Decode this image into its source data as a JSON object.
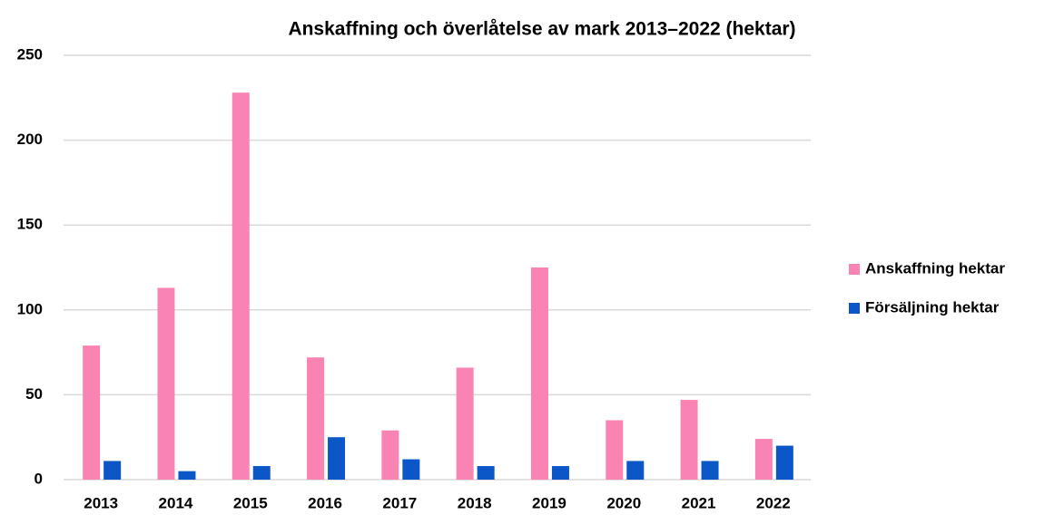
{
  "chart_data": {
    "type": "bar",
    "title": "Anskaffning och överlåtelse av mark 2013–2022 (hektar)",
    "categories": [
      "2013",
      "2014",
      "2015",
      "2016",
      "2017",
      "2018",
      "2019",
      "2020",
      "2021",
      "2022"
    ],
    "series": [
      {
        "name": "Anskaffning hektar",
        "color": "#f984b4",
        "values": [
          79,
          113,
          228,
          72,
          29,
          66,
          125,
          35,
          47,
          24
        ]
      },
      {
        "name": "Försäljning hektar",
        "color": "#0b57c8",
        "values": [
          11,
          5,
          8,
          25,
          12,
          8,
          8,
          11,
          11,
          20
        ]
      }
    ],
    "ylim": [
      0,
      250
    ],
    "yticks": [
      0,
      50,
      100,
      150,
      200,
      250
    ],
    "grid": true,
    "legend": "right"
  }
}
